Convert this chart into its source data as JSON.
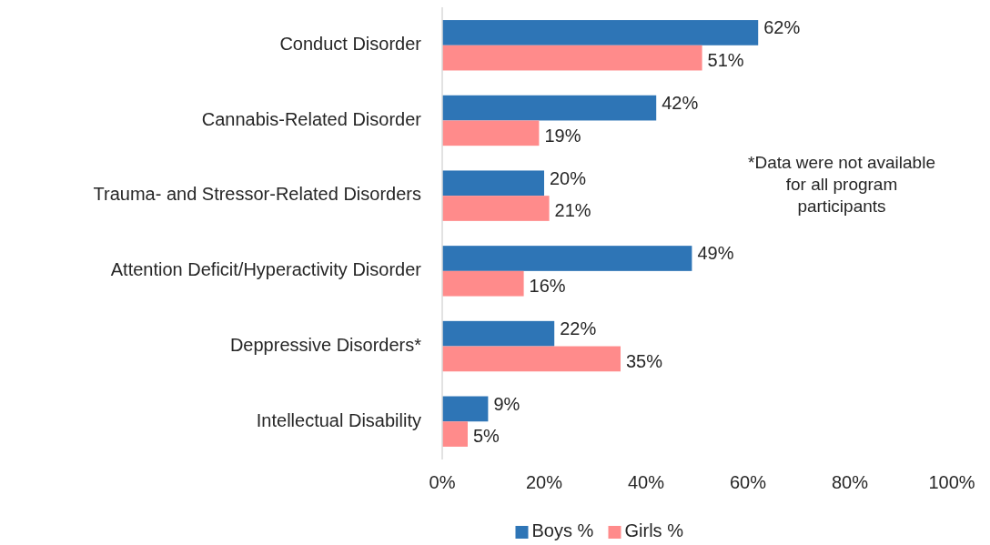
{
  "chart_data": {
    "type": "bar",
    "orientation": "horizontal",
    "categories": [
      "Conduct Disorder",
      "Cannabis-Related Disorder",
      "Trauma- and Stressor-Related Disorders",
      "Attention Deficit/Hyperactivity Disorder",
      "Deppressive Disorders*",
      "Intellectual Disability"
    ],
    "series": [
      {
        "name": "Boys %",
        "color": "#2e75b6",
        "values": [
          62,
          42,
          20,
          49,
          22,
          9
        ],
        "value_labels": [
          "62%",
          "42%",
          "20%",
          "49%",
          "22%",
          "9%"
        ]
      },
      {
        "name": "Girls %",
        "color": "#ff8b8b",
        "values": [
          51,
          19,
          21,
          16,
          35,
          5
        ],
        "value_labels": [
          "51%",
          "19%",
          "21%",
          "16%",
          "35%",
          "5%"
        ]
      }
    ],
    "xlim": [
      0,
      100
    ],
    "xticks": [
      {
        "value": 0,
        "label": "0%"
      },
      {
        "value": 20,
        "label": "20%"
      },
      {
        "value": 40,
        "label": "40%"
      },
      {
        "value": 60,
        "label": "60%"
      },
      {
        "value": 80,
        "label": "80%"
      },
      {
        "value": 100,
        "label": "100%"
      }
    ],
    "annotations": [
      "*Data were not available for all program participants"
    ],
    "legend": "bottom"
  }
}
